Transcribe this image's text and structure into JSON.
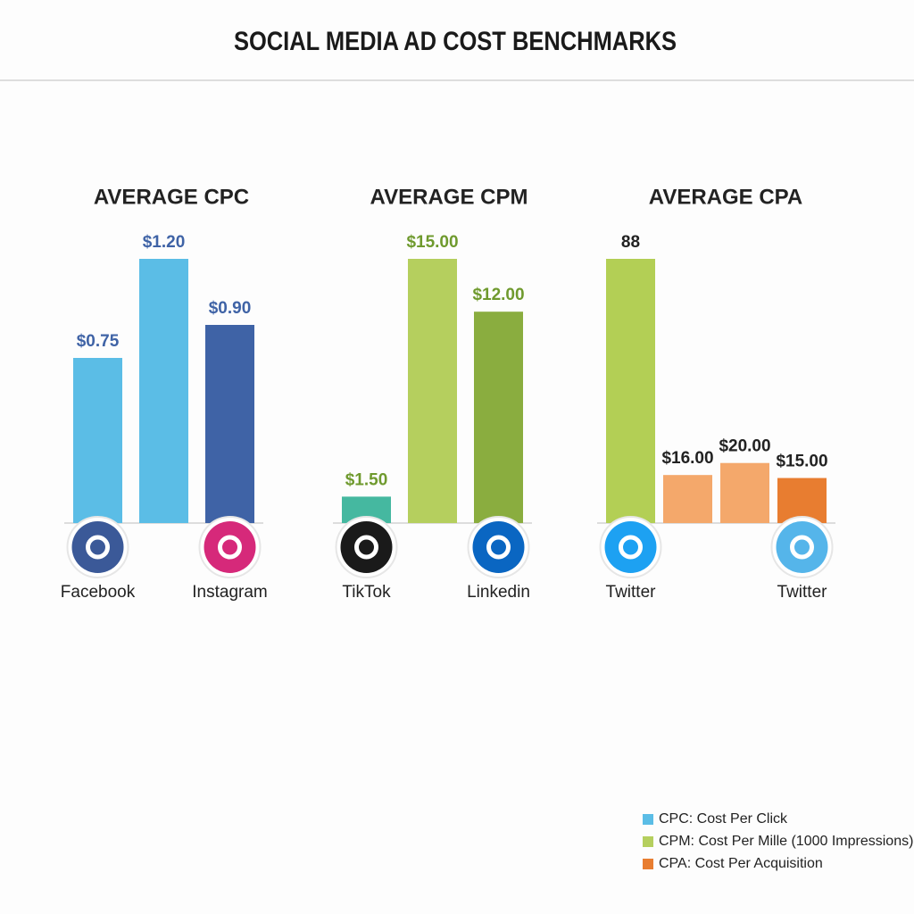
{
  "title": "SOCIAL MEDIA AD COST BENCHMARKS",
  "chart_data": [
    {
      "type": "bar",
      "subtitle": "AVERAGE CPC",
      "categories": [
        "Facebook",
        null,
        "Instagram"
      ],
      "values": [
        0.75,
        1.2,
        0.9
      ],
      "value_labels": [
        "$0.75",
        "$1.20",
        "$0.90"
      ],
      "colors": [
        "#5bbde6",
        "#5bbde6",
        "#3f63a6"
      ],
      "label_color": "#3f63a6",
      "icon_colors": [
        "#3b5998",
        null,
        "#d6297a"
      ]
    },
    {
      "type": "bar",
      "subtitle": "AVERAGE CPM",
      "categories": [
        "TikTok",
        null,
        "Linkedin"
      ],
      "values": [
        1.5,
        15.0,
        12.0
      ],
      "value_labels": [
        "$1.50",
        "$15.00",
        "$12.00"
      ],
      "colors": [
        "#45b8a0",
        "#b5cf5e",
        "#8aad3f"
      ],
      "label_color": "#6f9a2e",
      "icon_colors": [
        "#1a1a1a",
        null,
        "#0a66c2"
      ]
    },
    {
      "type": "bar",
      "subtitle": "AVERAGE CPA",
      "categories": [
        "Twitter",
        null,
        null,
        "Twitter"
      ],
      "values": [
        88,
        16.0,
        20.0,
        15.0
      ],
      "value_labels": [
        "88",
        "$16.00",
        "$20.00",
        "$15.00"
      ],
      "colors": [
        "#b3cf55",
        "#f4a86b",
        "#f4a86b",
        "#e87d30"
      ],
      "label_color": "#222222",
      "icon_colors": [
        "#1da1f2",
        null,
        null,
        "#55b5ea"
      ]
    }
  ],
  "legend": [
    {
      "label": "CPC: Cost Per Click",
      "color": "#5bbde6"
    },
    {
      "label": "CPM: Cost Per Mille (1000 Impressions)",
      "color": "#b5cf5e"
    },
    {
      "label": "CPA: Cost Per Acquisition",
      "color": "#e87d30"
    }
  ]
}
